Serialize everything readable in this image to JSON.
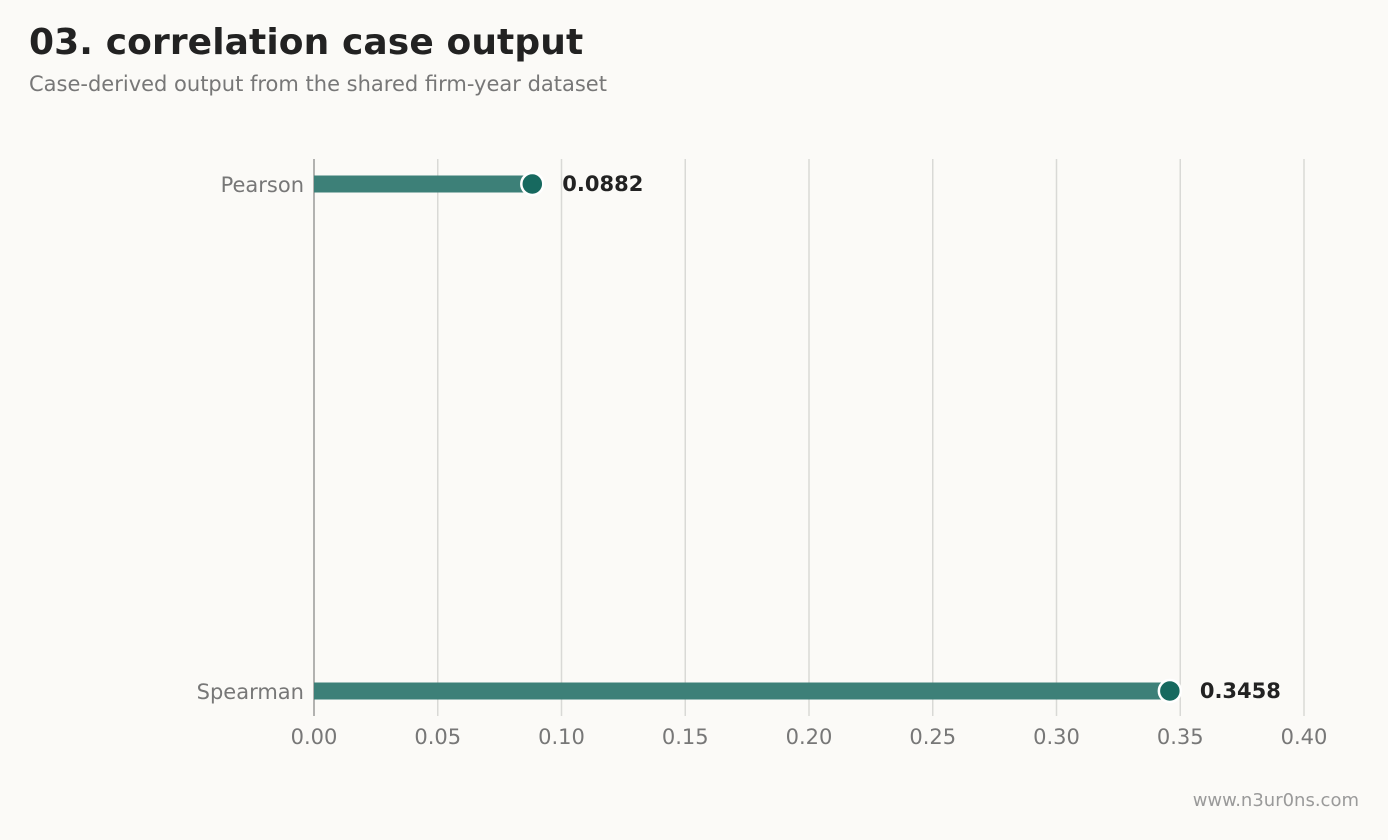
{
  "header": {
    "title": "03. correlation case output",
    "subtitle": "Case-derived output from the shared firm-year dataset"
  },
  "footer": {
    "watermark": "www.n3ur0ns.com"
  },
  "colors": {
    "background": "#fbfaf7",
    "bar": "#3d8078",
    "dot": "#17695f",
    "grid": "#d9d9d6",
    "axis": "#999999"
  },
  "chart_data": {
    "type": "bar",
    "orientation": "horizontal",
    "style": "lollipop",
    "categories": [
      "Pearson",
      "Spearman"
    ],
    "values": [
      0.0882,
      0.3458
    ],
    "value_labels": [
      "0.0882",
      "0.3458"
    ],
    "xlim": [
      0,
      0.4
    ],
    "xticks": [
      0.0,
      0.05,
      0.1,
      0.15,
      0.2,
      0.25,
      0.3,
      0.35,
      0.4
    ],
    "xtick_labels": [
      "0.00",
      "0.05",
      "0.10",
      "0.15",
      "0.20",
      "0.25",
      "0.30",
      "0.35",
      "0.40"
    ],
    "grid": "x",
    "legend": "none"
  }
}
